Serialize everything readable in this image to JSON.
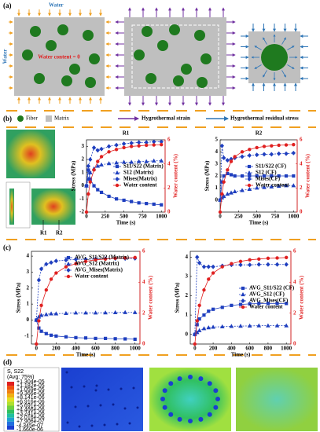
{
  "panels": {
    "a": "(a)",
    "b": "(b)",
    "c": "(c)",
    "d": "(d)"
  },
  "panel_a": {
    "water_top": "Water",
    "water_left": "Water",
    "water_content": "Water content = 0"
  },
  "legend": {
    "fiber": "Fiber",
    "matrix": "Matrix",
    "strain": "Hygrothermal strain",
    "residual": "Hygrothermal residual stress"
  },
  "panel_b": {
    "r1": "R1",
    "r2": "R2"
  },
  "chart_data": [
    {
      "type": "line",
      "title": "R1",
      "xlabel": "Time (s)",
      "ylabel": "Stress (MPa)",
      "y2label": "Water content (%)",
      "x": [
        0,
        25,
        50,
        100,
        150,
        200,
        300,
        400,
        500,
        600,
        700,
        800,
        900,
        1000
      ],
      "xlim": [
        0,
        1050
      ],
      "xticks": [
        0,
        250,
        500,
        750,
        1000
      ],
      "ylim": [
        -2,
        3.5
      ],
      "yticks": [
        -2,
        -1,
        0,
        1,
        2,
        3
      ],
      "y2lim": [
        0,
        6
      ],
      "y2ticks": [
        0,
        2,
        4,
        6
      ],
      "legend": "center right",
      "series": [
        {
          "name": "S11/S22 (Matrix)",
          "color": "#1f3fbf",
          "marker": "square",
          "dash": false,
          "values": [
            0,
            1.2,
            0.5,
            0,
            -0.3,
            -0.5,
            -0.8,
            -1.0,
            -1.1,
            -1.2,
            -1.3,
            -1.35,
            -1.4,
            -1.45
          ]
        },
        {
          "name": "S12 (Matrix)",
          "color": "#1f3fbf",
          "marker": "triangle",
          "dash": true,
          "values": [
            0,
            0.5,
            1.0,
            1.3,
            1.5,
            1.6,
            1.7,
            1.75,
            1.8,
            1.8,
            1.85,
            1.85,
            1.9,
            1.9
          ]
        },
        {
          "name": "Mises(Matrix)",
          "color": "#1f3fbf",
          "marker": "diamond",
          "dash": true,
          "values": [
            0,
            1.5,
            2.0,
            2.9,
            2.7,
            2.8,
            3.0,
            3.1,
            3.2,
            3.25,
            3.3,
            3.3,
            3.35,
            3.35
          ]
        },
        {
          "name": "Water content",
          "color": "#e02020",
          "marker": "circle",
          "dash": false,
          "axis": "y2",
          "values": [
            0,
            1.5,
            2.5,
            3.5,
            4.2,
            4.6,
            5.0,
            5.2,
            5.35,
            5.45,
            5.5,
            5.55,
            5.57,
            5.6
          ]
        }
      ]
    },
    {
      "type": "line",
      "title": "R2",
      "xlabel": "Time (s)",
      "ylabel": "Stress (MPa)",
      "y2label": "Water content (%)",
      "x": [
        0,
        25,
        50,
        100,
        150,
        200,
        300,
        400,
        500,
        600,
        700,
        800,
        900,
        1000
      ],
      "xlim": [
        0,
        1050
      ],
      "xticks": [
        0,
        250,
        500,
        750,
        1000
      ],
      "ylim": [
        -1,
        5
      ],
      "yticks": [
        0,
        1,
        2,
        3,
        4,
        5
      ],
      "y2lim": [
        0,
        6
      ],
      "y2ticks": [
        0,
        2,
        4,
        6
      ],
      "legend": "center right",
      "series": [
        {
          "name": "S11/S22 (CF)",
          "color": "#1f3fbf",
          "marker": "square",
          "dash": false,
          "values": [
            0,
            1.5,
            2.0,
            2.2,
            2.1,
            2.0,
            2.0,
            2.0,
            2.0,
            2.0,
            2.0,
            2.0,
            2.0,
            2.0
          ]
        },
        {
          "name": "S12 (CF)",
          "color": "#1f3fbf",
          "marker": "triangle",
          "dash": true,
          "values": [
            0,
            0.2,
            0.3,
            0.5,
            0.6,
            0.7,
            0.8,
            0.9,
            1.0,
            1.05,
            1.1,
            1.15,
            1.2,
            1.2
          ]
        },
        {
          "name": "Mises(CF)",
          "color": "#1f3fbf",
          "marker": "diamond",
          "dash": true,
          "values": [
            0,
            4.5,
            3.5,
            3.3,
            3.4,
            3.5,
            3.6,
            3.7,
            3.75,
            3.8,
            3.8,
            3.85,
            3.85,
            3.9
          ]
        },
        {
          "name": "Water content",
          "color": "#e02020",
          "marker": "circle",
          "dash": false,
          "axis": "y2",
          "values": [
            0,
            1.5,
            2.5,
            3.5,
            4.2,
            4.6,
            5.0,
            5.2,
            5.35,
            5.45,
            5.5,
            5.55,
            5.57,
            5.6
          ]
        }
      ]
    },
    {
      "type": "line",
      "xlabel": "Time (s)",
      "ylabel": "Stress (MPa)",
      "y2label": "Water content (%)",
      "x": [
        0,
        25,
        50,
        100,
        150,
        200,
        300,
        400,
        500,
        600,
        700,
        800,
        900,
        1000
      ],
      "xlim": [
        -50,
        1050
      ],
      "xticks": [
        0,
        200,
        400,
        600,
        800,
        1000
      ],
      "ylim": [
        -1.5,
        4.3
      ],
      "yticks": [
        -1,
        0,
        1,
        2,
        3,
        4
      ],
      "y2lim": [
        0,
        6
      ],
      "y2ticks": [
        0,
        2,
        4,
        6
      ],
      "legend": "upper center",
      "series": [
        {
          "name": "AVG_S11/S22 (Matrix)",
          "color": "#1f3fbf",
          "marker": "square",
          "dash": false,
          "values": [
            0,
            -0.5,
            -0.7,
            -0.85,
            -0.95,
            -1.0,
            -1.05,
            -1.1,
            -1.12,
            -1.15,
            -1.15,
            -1.17,
            -1.18,
            -1.2
          ]
        },
        {
          "name": "AVG_S12 (Matrix)",
          "color": "#1f3fbf",
          "marker": "triangle",
          "dash": true,
          "values": [
            0,
            0.2,
            0.3,
            0.35,
            0.4,
            0.4,
            0.42,
            0.45,
            0.45,
            0.45,
            0.46,
            0.47,
            0.48,
            0.48
          ]
        },
        {
          "name": "AVG_Mises(Matrix)",
          "color": "#1f3fbf",
          "marker": "diamond",
          "dash": true,
          "values": [
            0,
            2.5,
            3.2,
            3.5,
            3.6,
            3.7,
            3.75,
            3.8,
            3.8,
            3.82,
            3.85,
            3.85,
            3.85,
            3.86
          ]
        },
        {
          "name": "Water content",
          "color": "#e02020",
          "marker": "circle",
          "dash": false,
          "axis": "y2",
          "values": [
            0,
            1.5,
            2.5,
            3.5,
            4.2,
            4.6,
            5.0,
            5.2,
            5.35,
            5.45,
            5.5,
            5.55,
            5.57,
            5.6
          ]
        }
      ]
    },
    {
      "type": "line",
      "xlabel": "Time (s)",
      "ylabel": "Stress (MPa)",
      "y2label": "Water content (%)",
      "x": [
        0,
        25,
        50,
        100,
        150,
        200,
        300,
        400,
        500,
        600,
        700,
        800,
        900,
        1000
      ],
      "xlim": [
        -50,
        1050
      ],
      "xticks": [
        0,
        200,
        400,
        600,
        800,
        1000
      ],
      "ylim": [
        -0.5,
        4.3
      ],
      "yticks": [
        0,
        1,
        2,
        3,
        4
      ],
      "y2lim": [
        0,
        6
      ],
      "y2ticks": [
        0,
        2,
        4,
        6
      ],
      "legend": "center right",
      "series": [
        {
          "name": "AVG_S11/S22 (CF)",
          "color": "#1f3fbf",
          "marker": "square",
          "dash": false,
          "values": [
            0,
            0.5,
            0.8,
            1.0,
            1.2,
            1.3,
            1.4,
            1.5,
            1.55,
            1.58,
            1.6,
            1.6,
            1.6,
            1.6
          ]
        },
        {
          "name": "AVG_S12 (CF)",
          "color": "#1f3fbf",
          "marker": "triangle",
          "dash": true,
          "values": [
            0,
            0.1,
            0.2,
            0.3,
            0.35,
            0.38,
            0.4,
            0.42,
            0.43,
            0.44,
            0.45,
            0.45,
            0.45,
            0.45
          ]
        },
        {
          "name": "AVG_Mises(CF)",
          "color": "#1f3fbf",
          "marker": "diamond",
          "dash": true,
          "values": [
            0,
            4.0,
            3.7,
            3.5,
            3.5,
            3.5,
            3.55,
            3.6,
            3.6,
            3.6,
            3.62,
            3.62,
            3.62,
            3.62
          ]
        },
        {
          "name": "Water content",
          "color": "#e02020",
          "marker": "circle",
          "dash": false,
          "axis": "y2",
          "values": [
            0,
            1.5,
            2.5,
            3.5,
            4.2,
            4.6,
            5.0,
            5.2,
            5.35,
            5.45,
            5.5,
            5.55,
            5.57,
            5.6
          ]
        }
      ]
    }
  ],
  "panel_d": {
    "title": "S, S22",
    "subtitle": "(Avg: 75%)",
    "labels": [
      "+1.304e-05",
      "+1.182e-05",
      "+1.059e-05",
      "+9.366e-06",
      "+8.141e-06",
      "+6.916e-06",
      "+5.691e-06",
      "+4.466e-06",
      "+3.241e-06",
      "+2.016e-06",
      "+7.906e-07",
      "-4.345e-07",
      "-1.660e-06"
    ]
  }
}
